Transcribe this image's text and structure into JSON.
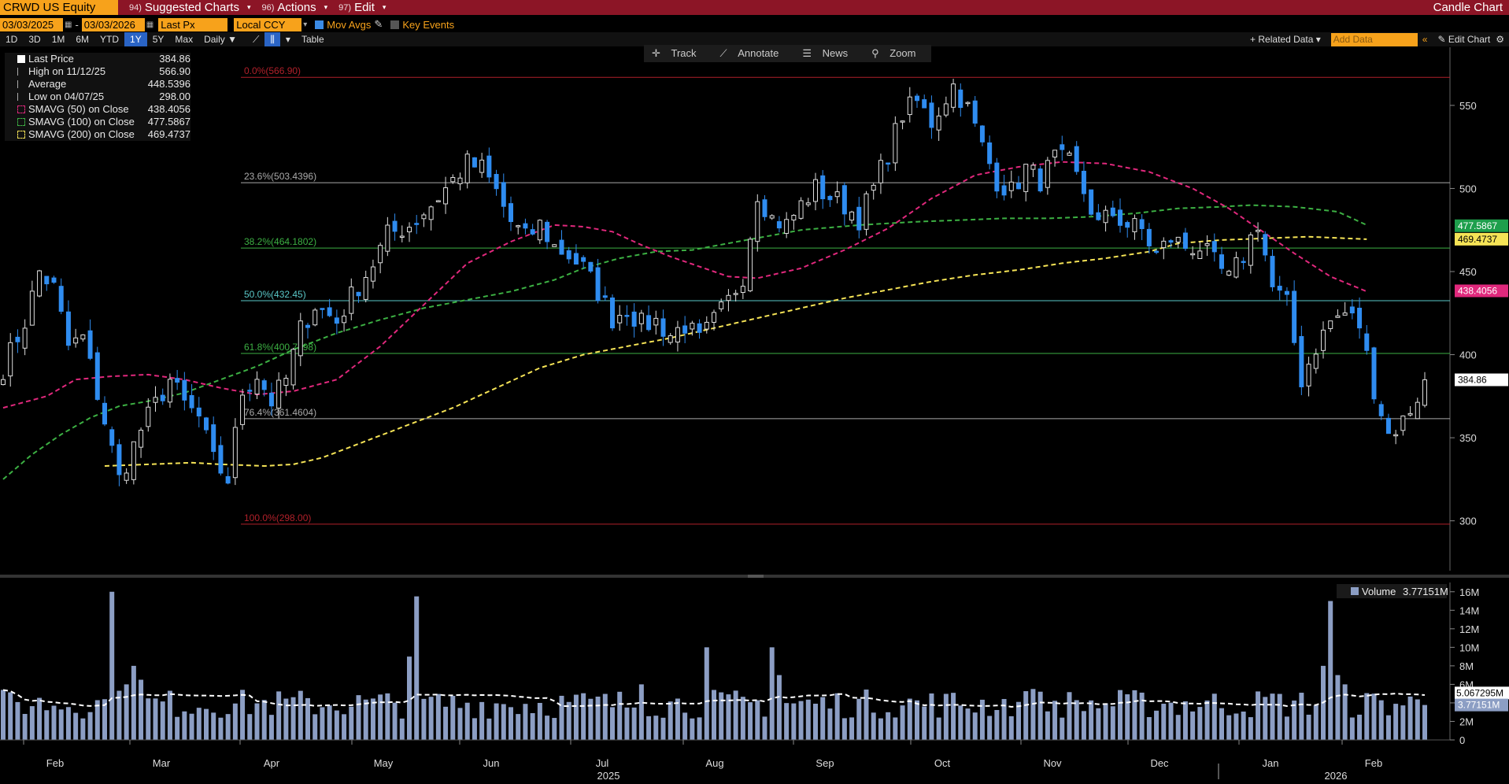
{
  "toolbar": {
    "ticker": "CRWD US Equity",
    "menu_suggested": {
      "num": "94)",
      "label": "Suggested Charts"
    },
    "menu_actions": {
      "num": "96)",
      "label": "Actions"
    },
    "menu_edit": {
      "num": "97)",
      "label": "Edit"
    },
    "chart_type": "Candle Chart"
  },
  "params": {
    "start_date": "03/03/2025",
    "end_date": "03/03/2026",
    "field": "Last Px",
    "currency": "Local CCY",
    "mov_avgs": "Mov Avgs",
    "key_events": "Key Events"
  },
  "periods": [
    "1D",
    "3D",
    "1M",
    "6M",
    "YTD",
    "1Y",
    "5Y",
    "Max"
  ],
  "selected_period": "1Y",
  "frequency": "Daily",
  "table_label": "Table",
  "related_data": "Related Data",
  "add_data_placeholder": "Add Data",
  "edit_chart": "Edit Chart",
  "tools": {
    "track": "Track",
    "annotate": "Annotate",
    "news": "News",
    "zoom": "Zoom"
  },
  "legend": [
    {
      "label": "Last Price",
      "value": "384.86",
      "color": "#ffffff"
    },
    {
      "label": "High on 11/12/25",
      "value": "566.90",
      "color": "#aaaaaa"
    },
    {
      "label": "Average",
      "value": "448.5396",
      "color": "#aaaaaa"
    },
    {
      "label": "Low on 04/07/25",
      "value": "298.00",
      "color": "#aaaaaa"
    },
    {
      "label": "SMAVG (50)  on Close",
      "value": "438.4056",
      "color": "#e0287c"
    },
    {
      "label": "SMAVG (100)  on Close",
      "value": "477.5867",
      "color": "#3cb043"
    },
    {
      "label": "SMAVG (200)  on Close",
      "value": "469.4737",
      "color": "#f5e356"
    }
  ],
  "volume_legend": {
    "label": "Volume",
    "value": "3.77151M"
  },
  "colors": {
    "up": "#ffffff",
    "down": "#2f8cf0",
    "ma50": "#e0287c",
    "ma100": "#3cb043",
    "ma200": "#f5e356",
    "volume": "#8c9ec4",
    "fib_red": "#b0202a",
    "fib_green": "#3cb043",
    "fib_grey": "#aaaaaa"
  },
  "chart_data": {
    "type": "candlestick",
    "x_range": [
      "2025-01-20",
      "2026-03-03"
    ],
    "x_ticks": [
      "Feb",
      "Mar",
      "Apr",
      "May",
      "Jun",
      "Jul",
      "Aug",
      "Sep",
      "Oct",
      "Nov",
      "Dec",
      "Jan",
      "Feb"
    ],
    "year_labels": [
      "2025",
      "2026"
    ],
    "y_range": [
      270,
      585
    ],
    "y_ticks": [
      300,
      350,
      400,
      450,
      500,
      550
    ],
    "fib_levels": [
      {
        "label": "0.0%(566.90)",
        "value": 566.9,
        "color": "#b0202a"
      },
      {
        "label": "23.6%(503.4396)",
        "value": 503.44,
        "color": "#aaaaaa"
      },
      {
        "label": "38.2%(464.1802)",
        "value": 464.18,
        "color": "#3cb043"
      },
      {
        "label": "50.0%(432.45)",
        "value": 432.45,
        "color": "#5ac8c8"
      },
      {
        "label": "61.8%(400.7198)",
        "value": 400.72,
        "color": "#3cb043"
      },
      {
        "label": "76.4%(361.4604)",
        "value": 361.46,
        "color": "#aaaaaa"
      },
      {
        "label": "100.0%(298.00)",
        "value": 298.0,
        "color": "#b0202a"
      }
    ],
    "price_anchors": [
      [
        0,
        392
      ],
      [
        3,
        420
      ],
      [
        5,
        450
      ],
      [
        7,
        440
      ],
      [
        9,
        405
      ],
      [
        11,
        410
      ],
      [
        14,
        360
      ],
      [
        16,
        325
      ],
      [
        19,
        355
      ],
      [
        23,
        385
      ],
      [
        25,
        370
      ],
      [
        27,
        362
      ],
      [
        29,
        336
      ],
      [
        31,
        325
      ],
      [
        33,
        378
      ],
      [
        35,
        388
      ],
      [
        37,
        372
      ],
      [
        39,
        385
      ],
      [
        41,
        415
      ],
      [
        43,
        430
      ],
      [
        46,
        420
      ],
      [
        48,
        435
      ],
      [
        51,
        455
      ],
      [
        53,
        472
      ],
      [
        56,
        478
      ],
      [
        59,
        490
      ],
      [
        62,
        505
      ],
      [
        64,
        515
      ],
      [
        66,
        512
      ],
      [
        68,
        498
      ],
      [
        70,
        480
      ],
      [
        72,
        470
      ],
      [
        74,
        478
      ],
      [
        76,
        465
      ],
      [
        78,
        460
      ],
      [
        80,
        452
      ],
      [
        82,
        438
      ],
      [
        84,
        422
      ],
      [
        86,
        428
      ],
      [
        88,
        418
      ],
      [
        90,
        420
      ],
      [
        92,
        412
      ],
      [
        94,
        418
      ],
      [
        96,
        408
      ],
      [
        98,
        420
      ],
      [
        100,
        432
      ],
      [
        102,
        448
      ],
      [
        104,
        498
      ],
      [
        106,
        482
      ],
      [
        108,
        478
      ],
      [
        110,
        490
      ],
      [
        112,
        500
      ],
      [
        114,
        495
      ],
      [
        116,
        490
      ],
      [
        118,
        482
      ],
      [
        120,
        500
      ],
      [
        122,
        522
      ],
      [
        124,
        545
      ],
      [
        126,
        552
      ],
      [
        128,
        540
      ],
      [
        130,
        555
      ],
      [
        131,
        562
      ],
      [
        133,
        548
      ],
      [
        135,
        525
      ],
      [
        137,
        505
      ],
      [
        139,
        498
      ],
      [
        141,
        512
      ],
      [
        143,
        505
      ],
      [
        145,
        518
      ],
      [
        147,
        515
      ],
      [
        149,
        498
      ],
      [
        151,
        478
      ],
      [
        153,
        485
      ],
      [
        155,
        478
      ],
      [
        157,
        475
      ],
      [
        159,
        460
      ],
      [
        161,
        470
      ],
      [
        163,
        465
      ],
      [
        165,
        465
      ],
      [
        167,
        455
      ],
      [
        169,
        445
      ],
      [
        171,
        460
      ],
      [
        173,
        480
      ],
      [
        175,
        440
      ],
      [
        177,
        430
      ],
      [
        179,
        385
      ],
      [
        181,
        405
      ],
      [
        183,
        420
      ],
      [
        185,
        425
      ],
      [
        187,
        418
      ],
      [
        189,
        380
      ],
      [
        191,
        352
      ],
      [
        193,
        360
      ],
      [
        195,
        375
      ],
      [
        196,
        385
      ]
    ],
    "ma50_anchors": [
      [
        0,
        368
      ],
      [
        6,
        375
      ],
      [
        10,
        385
      ],
      [
        15,
        387
      ],
      [
        20,
        388
      ],
      [
        25,
        385
      ],
      [
        30,
        380
      ],
      [
        35,
        376
      ],
      [
        40,
        378
      ],
      [
        46,
        385
      ],
      [
        52,
        405
      ],
      [
        58,
        430
      ],
      [
        64,
        455
      ],
      [
        70,
        468
      ],
      [
        76,
        478
      ],
      [
        80,
        477
      ],
      [
        84,
        474
      ],
      [
        88,
        466
      ],
      [
        92,
        459
      ],
      [
        96,
        453
      ],
      [
        100,
        447
      ],
      [
        104,
        446
      ],
      [
        110,
        452
      ],
      [
        116,
        463
      ],
      [
        122,
        476
      ],
      [
        128,
        494
      ],
      [
        134,
        508
      ],
      [
        140,
        513
      ],
      [
        146,
        516
      ],
      [
        152,
        515
      ],
      [
        158,
        510
      ],
      [
        164,
        500
      ],
      [
        169,
        488
      ],
      [
        173,
        476
      ],
      [
        178,
        461
      ],
      [
        183,
        447
      ],
      [
        188,
        438
      ]
    ],
    "ma100_anchors": [
      [
        0,
        325
      ],
      [
        4,
        340
      ],
      [
        8,
        352
      ],
      [
        12,
        362
      ],
      [
        16,
        369
      ],
      [
        20,
        372
      ],
      [
        25,
        377
      ],
      [
        30,
        385
      ],
      [
        35,
        393
      ],
      [
        40,
        403
      ],
      [
        46,
        413
      ],
      [
        52,
        421
      ],
      [
        58,
        428
      ],
      [
        64,
        433
      ],
      [
        70,
        438
      ],
      [
        76,
        445
      ],
      [
        80,
        452
      ],
      [
        85,
        458
      ],
      [
        90,
        462
      ],
      [
        95,
        463
      ],
      [
        100,
        467
      ],
      [
        105,
        471
      ],
      [
        110,
        475
      ],
      [
        118,
        478
      ],
      [
        126,
        480
      ],
      [
        132,
        481
      ],
      [
        138,
        482
      ],
      [
        144,
        482
      ],
      [
        150,
        483
      ],
      [
        156,
        485
      ],
      [
        162,
        488
      ],
      [
        168,
        489
      ],
      [
        172,
        490
      ],
      [
        178,
        489
      ],
      [
        184,
        486
      ],
      [
        188,
        478
      ]
    ],
    "ma200_anchors": [
      [
        14,
        333
      ],
      [
        20,
        334
      ],
      [
        26,
        335
      ],
      [
        30,
        334
      ],
      [
        36,
        333
      ],
      [
        40,
        334
      ],
      [
        44,
        338
      ],
      [
        50,
        348
      ],
      [
        56,
        358
      ],
      [
        62,
        368
      ],
      [
        68,
        380
      ],
      [
        74,
        392
      ],
      [
        80,
        400
      ],
      [
        86,
        405
      ],
      [
        92,
        410
      ],
      [
        98,
        416
      ],
      [
        104,
        422
      ],
      [
        110,
        428
      ],
      [
        116,
        434
      ],
      [
        122,
        439
      ],
      [
        128,
        444
      ],
      [
        134,
        448
      ],
      [
        140,
        451
      ],
      [
        146,
        455
      ],
      [
        152,
        458
      ],
      [
        158,
        462
      ],
      [
        162,
        467
      ],
      [
        168,
        469
      ],
      [
        174,
        470
      ],
      [
        180,
        471
      ],
      [
        188,
        469.47
      ]
    ],
    "volume": {
      "y_ticks": [
        "0",
        "2M",
        "4M",
        "6M",
        "8M",
        "10M",
        "12M",
        "14M",
        "16M"
      ],
      "y_range_millions": [
        0,
        17
      ],
      "last": 3.77151,
      "avg_last": 5.067295,
      "spikes": [
        [
          15,
          16
        ],
        [
          18,
          8
        ],
        [
          17,
          6
        ],
        [
          19,
          6.5
        ],
        [
          57,
          15.5
        ],
        [
          56,
          9
        ],
        [
          97,
          10
        ],
        [
          106,
          10
        ],
        [
          107,
          7
        ],
        [
          88,
          6
        ],
        [
          142,
          5.5
        ],
        [
          175,
          5
        ],
        [
          183,
          15
        ],
        [
          182,
          8
        ],
        [
          184,
          7
        ],
        [
          185,
          6
        ]
      ]
    }
  },
  "labels": {
    "last_price": "384.86",
    "ma100": "477.5867",
    "ma200": "469.4737",
    "ma50": "438.4056",
    "vol_avg": "5.067295M",
    "vol_last": "3.77151M"
  }
}
